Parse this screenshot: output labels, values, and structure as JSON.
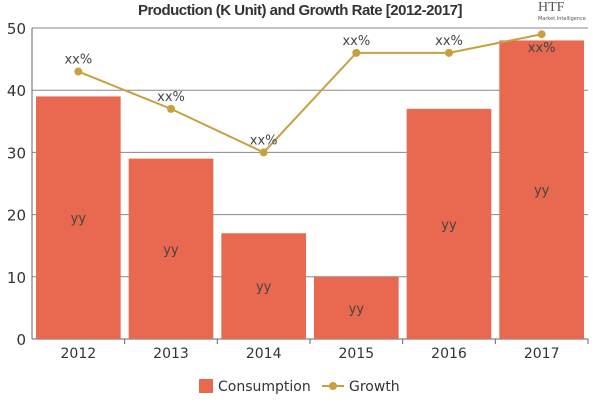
{
  "chart_data": {
    "type": "bar+line",
    "title": "Production (K Unit) and Growth Rate [2012-2017]",
    "categories": [
      "2012",
      "2013",
      "2014",
      "2015",
      "2016",
      "2017"
    ],
    "series": [
      {
        "name": "Consumption",
        "type": "bar",
        "values": [
          39,
          29,
          17,
          10,
          37,
          48
        ],
        "labels": [
          "yy",
          "yy",
          "yy",
          "yy",
          "yy",
          "yy"
        ],
        "color": "#E8694F"
      },
      {
        "name": "Growth",
        "type": "line",
        "values": [
          43,
          37,
          30,
          46,
          46,
          49
        ],
        "labels": [
          "xx%",
          "xx%",
          "xx%",
          "xx%",
          "xx%",
          "xx%"
        ],
        "color": "#C9A040"
      }
    ],
    "ylim": [
      0,
      50
    ],
    "yticks": [
      0,
      10,
      20,
      30,
      40,
      50
    ],
    "grid": true,
    "legend": "bottom"
  },
  "logo": {
    "text": "HTF",
    "subtext": "Market Intelligence"
  }
}
